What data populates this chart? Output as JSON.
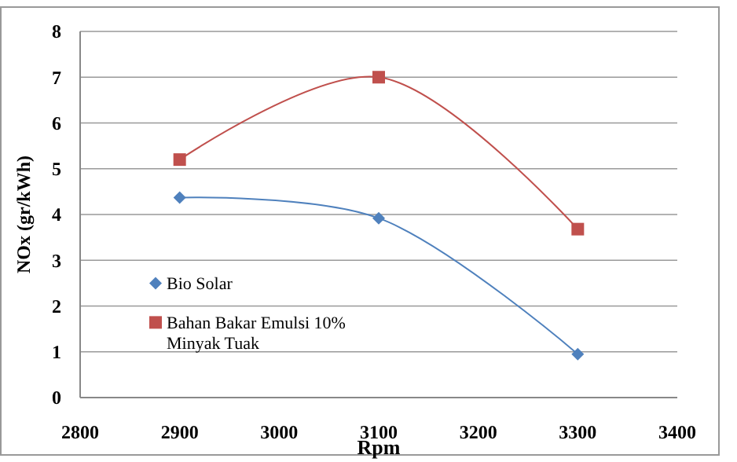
{
  "chart_data": {
    "type": "line",
    "xlabel": "Rpm",
    "ylabel": "NOx (gr/kWh)",
    "x": [
      2900,
      3100,
      3300
    ],
    "series": [
      {
        "name": "Bio Solar",
        "color": "#4f81bd",
        "marker": "diamond",
        "values": [
          4.37,
          3.92,
          0.95
        ]
      },
      {
        "name": "Bahan Bakar Emulsi 10% Minyak Tuak",
        "color": "#c0504d",
        "marker": "square",
        "values": [
          5.2,
          7.0,
          3.68
        ]
      }
    ],
    "xlim": [
      2800,
      3400
    ],
    "xticks": [
      2800,
      2900,
      3000,
      3100,
      3200,
      3300,
      3400
    ],
    "ylim": [
      0,
      8
    ],
    "yticks": [
      0,
      1,
      2,
      3,
      4,
      5,
      6,
      7,
      8
    ],
    "grid": "y",
    "legend": "bottom left"
  }
}
